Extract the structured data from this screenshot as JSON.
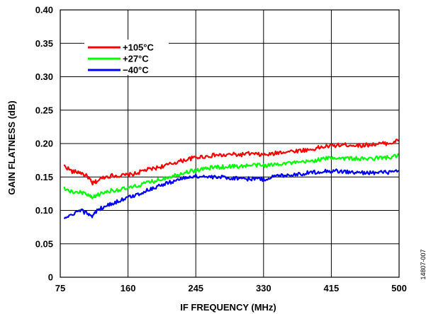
{
  "chart_data": {
    "type": "line",
    "xlabel": "IF FREQUENCY (MHz)",
    "ylabel": "GAIN FLATNESS (dB)",
    "xlim": [
      75,
      500
    ],
    "ylim": [
      0,
      0.4
    ],
    "x_ticks": [
      75,
      160,
      245,
      330,
      415,
      500
    ],
    "x_tick_labels": [
      "75",
      "160",
      "245",
      "330",
      "415",
      "500"
    ],
    "y_ticks": [
      0,
      0.05,
      0.1,
      0.15,
      0.2,
      0.25,
      0.3,
      0.35,
      0.4
    ],
    "y_tick_labels": [
      "0",
      "0.05",
      "0.10",
      "0.15",
      "0.20",
      "0.25",
      "0.30",
      "0.35",
      "0.40"
    ],
    "grid": true,
    "legend_position": "top-left",
    "figure_id": "14807-007",
    "series": [
      {
        "name": "+105°C",
        "color": "#ff0000",
        "x": [
          80,
          90,
          100,
          110,
          115,
          120,
          130,
          140,
          150,
          160,
          170,
          180,
          190,
          200,
          210,
          220,
          230,
          240,
          250,
          260,
          270,
          280,
          290,
          300,
          310,
          320,
          330,
          340,
          350,
          360,
          370,
          380,
          390,
          400,
          410,
          420,
          430,
          440,
          450,
          460,
          470,
          480,
          490,
          500
        ],
        "values": [
          0.167,
          0.158,
          0.157,
          0.15,
          0.14,
          0.143,
          0.15,
          0.152,
          0.152,
          0.153,
          0.155,
          0.16,
          0.162,
          0.165,
          0.168,
          0.172,
          0.175,
          0.178,
          0.18,
          0.181,
          0.183,
          0.182,
          0.184,
          0.183,
          0.185,
          0.184,
          0.183,
          0.184,
          0.187,
          0.188,
          0.189,
          0.19,
          0.191,
          0.194,
          0.196,
          0.197,
          0.198,
          0.198,
          0.197,
          0.198,
          0.199,
          0.2,
          0.201,
          0.205
        ]
      },
      {
        "name": "+27°C",
        "color": "#00ff00",
        "x": [
          80,
          90,
          100,
          110,
          115,
          120,
          130,
          140,
          150,
          160,
          170,
          180,
          190,
          200,
          210,
          220,
          230,
          240,
          250,
          260,
          270,
          280,
          290,
          300,
          310,
          320,
          330,
          340,
          350,
          360,
          370,
          380,
          390,
          400,
          410,
          420,
          430,
          440,
          450,
          460,
          470,
          480,
          490,
          500
        ],
        "values": [
          0.133,
          0.127,
          0.127,
          0.123,
          0.118,
          0.122,
          0.127,
          0.13,
          0.131,
          0.133,
          0.136,
          0.14,
          0.143,
          0.146,
          0.15,
          0.153,
          0.157,
          0.159,
          0.161,
          0.163,
          0.165,
          0.165,
          0.166,
          0.166,
          0.167,
          0.168,
          0.167,
          0.168,
          0.17,
          0.171,
          0.171,
          0.172,
          0.174,
          0.176,
          0.178,
          0.179,
          0.178,
          0.178,
          0.177,
          0.177,
          0.178,
          0.179,
          0.179,
          0.183
        ]
      },
      {
        "name": "−40°C",
        "color": "#0000ff",
        "x": [
          80,
          90,
          100,
          110,
          115,
          120,
          130,
          140,
          150,
          160,
          170,
          180,
          190,
          200,
          210,
          220,
          230,
          240,
          250,
          260,
          270,
          280,
          290,
          300,
          310,
          320,
          330,
          340,
          350,
          360,
          370,
          380,
          390,
          400,
          410,
          420,
          430,
          440,
          450,
          460,
          470,
          480,
          490,
          500
        ],
        "values": [
          0.087,
          0.093,
          0.1,
          0.095,
          0.092,
          0.098,
          0.106,
          0.11,
          0.115,
          0.119,
          0.123,
          0.128,
          0.133,
          0.137,
          0.141,
          0.145,
          0.148,
          0.151,
          0.151,
          0.15,
          0.149,
          0.15,
          0.148,
          0.149,
          0.147,
          0.148,
          0.146,
          0.15,
          0.152,
          0.153,
          0.154,
          0.155,
          0.157,
          0.158,
          0.159,
          0.159,
          0.158,
          0.157,
          0.156,
          0.157,
          0.156,
          0.157,
          0.157,
          0.159
        ]
      }
    ]
  }
}
